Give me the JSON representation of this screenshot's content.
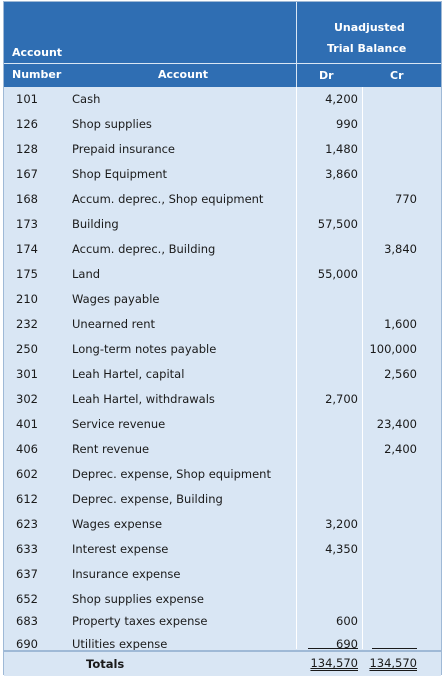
{
  "header": {
    "section_title_line1": "Unadjusted",
    "section_title_line2": "Trial Balance",
    "account_number_line1": "Account",
    "account_number_line2": "Number",
    "account": "Account",
    "dr": "Dr",
    "cr": "Cr"
  },
  "rows": [
    {
      "num": "101",
      "account": "Cash",
      "dr": "4,200",
      "cr": ""
    },
    {
      "num": "126",
      "account": "Shop supplies",
      "dr": "990",
      "cr": ""
    },
    {
      "num": "128",
      "account": "Prepaid insurance",
      "dr": "1,480",
      "cr": ""
    },
    {
      "num": "167",
      "account": "Shop Equipment",
      "dr": "3,860",
      "cr": ""
    },
    {
      "num": "168",
      "account": "Accum. deprec., Shop equipment",
      "dr": "",
      "cr": "770"
    },
    {
      "num": "173",
      "account": "Building",
      "dr": "57,500",
      "cr": ""
    },
    {
      "num": "174",
      "account": "Accum. deprec., Building",
      "dr": "",
      "cr": "3,840"
    },
    {
      "num": "175",
      "account": "Land",
      "dr": "55,000",
      "cr": ""
    },
    {
      "num": "210",
      "account": "Wages payable",
      "dr": "",
      "cr": ""
    },
    {
      "num": "232",
      "account": "Unearned rent",
      "dr": "",
      "cr": "1,600"
    },
    {
      "num": "250",
      "account": "Long-term notes payable",
      "dr": "",
      "cr": "100,000"
    },
    {
      "num": "301",
      "account": "Leah Hartel, capital",
      "dr": "",
      "cr": "2,560"
    },
    {
      "num": "302",
      "account": "Leah Hartel, withdrawals",
      "dr": "2,700",
      "cr": ""
    },
    {
      "num": "401",
      "account": "Service revenue",
      "dr": "",
      "cr": "23,400"
    },
    {
      "num": "406",
      "account": "Rent revenue",
      "dr": "",
      "cr": "2,400"
    },
    {
      "num": "602",
      "account": "Deprec. expense, Shop equipment",
      "dr": "",
      "cr": ""
    },
    {
      "num": "612",
      "account": "Deprec. expense, Building",
      "dr": "",
      "cr": ""
    },
    {
      "num": "623",
      "account": "Wages expense",
      "dr": "3,200",
      "cr": ""
    },
    {
      "num": "633",
      "account": "Interest expense",
      "dr": "4,350",
      "cr": ""
    },
    {
      "num": "637",
      "account": "Insurance expense",
      "dr": "",
      "cr": ""
    },
    {
      "num": "652",
      "account": "Shop supplies expense",
      "dr": "",
      "cr": ""
    },
    {
      "num": "683",
      "account": "Property taxes expense",
      "dr": "600",
      "cr": ""
    },
    {
      "num": "690",
      "account": "Utilities expense",
      "dr": "690",
      "cr": ""
    }
  ],
  "totals": {
    "label": "Totals",
    "dr": "134,570",
    "cr": "134,570"
  }
}
